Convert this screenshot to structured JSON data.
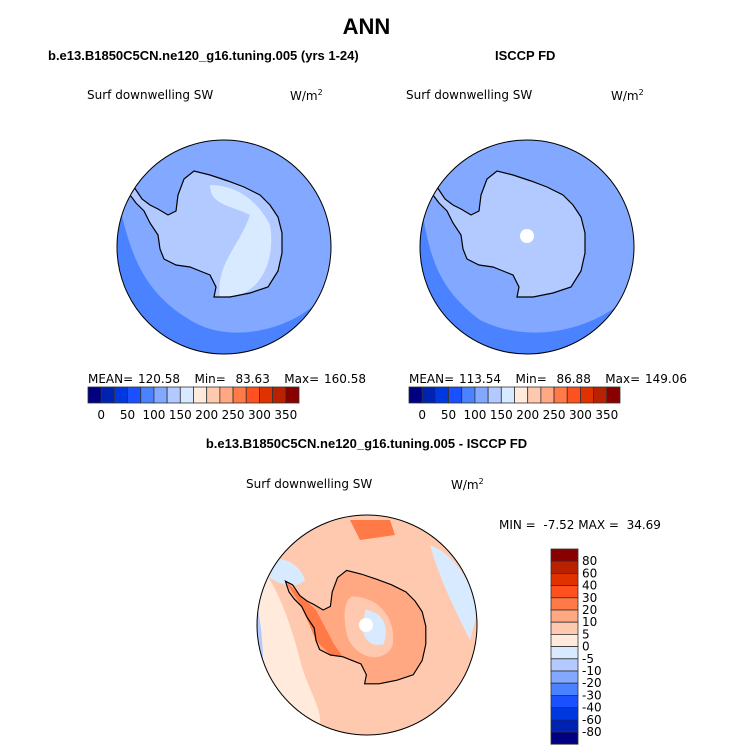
{
  "main_title": "ANN",
  "panels": [
    {
      "title": "b.e13.B1850C5CN.ne120_g16.tuning.005 (yrs 1-24)",
      "variable": "Surf downwelling SW",
      "units": "W/m",
      "units_sup": "2",
      "stats": {
        "mean_label": "MEAN=",
        "mean": "120.58",
        "min_label": "Min=",
        "min": "83.63",
        "max_label": "Max=",
        "max": "160.58"
      }
    },
    {
      "title": "ISCCP FD",
      "variable": "Surf downwelling SW",
      "units": "W/m",
      "units_sup": "2",
      "stats": {
        "mean_label": "MEAN=",
        "mean": "113.54",
        "min_label": "Min=",
        "min": "86.88",
        "max_label": "Max=",
        "max": "149.06"
      }
    },
    {
      "title": "b.e13.B1850C5CN.ne120_g16.tuning.005 - ISCCP FD",
      "variable": "Surf downwelling SW",
      "units": "W/m",
      "units_sup": "2",
      "stats": {
        "min_label": "MIN =",
        "min": "-7.52",
        "max_label": "MAX =",
        "max": "34.69"
      }
    }
  ],
  "colorbar_abs": {
    "levels": [
      0,
      25,
      50,
      75,
      100,
      125,
      150,
      175,
      200,
      225,
      250,
      275,
      300,
      325,
      350
    ],
    "labels": [
      "0",
      "50",
      "100",
      "150",
      "200",
      "250",
      "300",
      "350"
    ],
    "colors": [
      "#000080",
      "#0022b0",
      "#0038e0",
      "#1a50ff",
      "#4a82ff",
      "#82a8ff",
      "#b2caff",
      "#d8eaff",
      "#ffeadc",
      "#ffc9b0",
      "#ffa882",
      "#ff7a46",
      "#ff5020",
      "#e03200",
      "#b82200",
      "#880000"
    ]
  },
  "colorbar_diff": {
    "labels": [
      "80",
      "60",
      "40",
      "30",
      "20",
      "10",
      "5",
      "0",
      "-5",
      "-10",
      "-20",
      "-30",
      "-40",
      "-60",
      "-80"
    ],
    "colors": [
      "#880000",
      "#b82200",
      "#e03200",
      "#ff5020",
      "#ff7a46",
      "#ffa882",
      "#ffc9b0",
      "#ffeadc",
      "#d8eaff",
      "#b2caff",
      "#82a8ff",
      "#4a82ff",
      "#1a50ff",
      "#0038e0",
      "#0022b0",
      "#000080"
    ]
  }
}
